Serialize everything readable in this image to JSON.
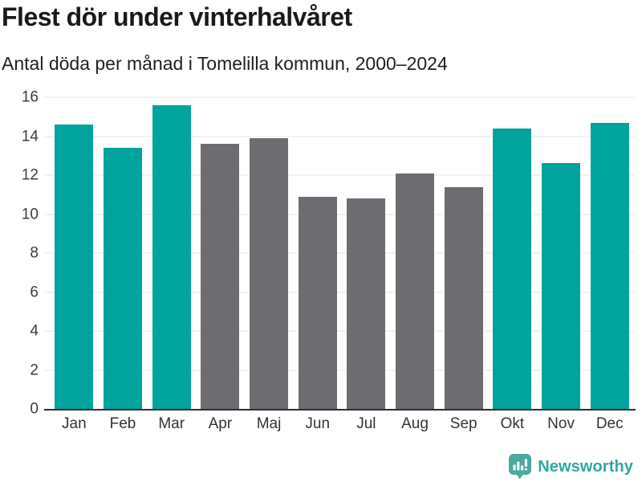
{
  "header": {
    "title": "Flest dör under vinterhalvåret",
    "subtitle": "Antal döda per månad i Tomelilla kommun, 2000–2024"
  },
  "chart_data": {
    "type": "bar",
    "title": "Flest dör under vinterhalvåret",
    "subtitle": "Antal döda per månad i Tomelilla kommun, 2000–2024",
    "categories": [
      "Jan",
      "Feb",
      "Mar",
      "Apr",
      "Maj",
      "Jun",
      "Jul",
      "Aug",
      "Sep",
      "Okt",
      "Nov",
      "Dec"
    ],
    "values": [
      14.6,
      13.4,
      15.6,
      13.6,
      13.9,
      10.9,
      10.8,
      12.1,
      11.4,
      14.4,
      12.6,
      14.7
    ],
    "bar_colors": [
      "teal",
      "teal",
      "teal",
      "gray",
      "gray",
      "gray",
      "gray",
      "gray",
      "gray",
      "teal",
      "teal",
      "teal"
    ],
    "colors": {
      "teal": "#00a49c",
      "gray": "#6d6d71"
    },
    "xlabel": "",
    "ylabel": "",
    "ylim": [
      0,
      16
    ],
    "yticks": [
      0,
      2,
      4,
      6,
      8,
      10,
      12,
      14,
      16
    ],
    "grid": true,
    "legend": "none"
  },
  "footer": {
    "brand": "Newsworthy",
    "brand_color": "#2ea89d",
    "logo_color": "#4aa9a0",
    "logo_icon": "bar-chart-speech-bubble-icon"
  }
}
